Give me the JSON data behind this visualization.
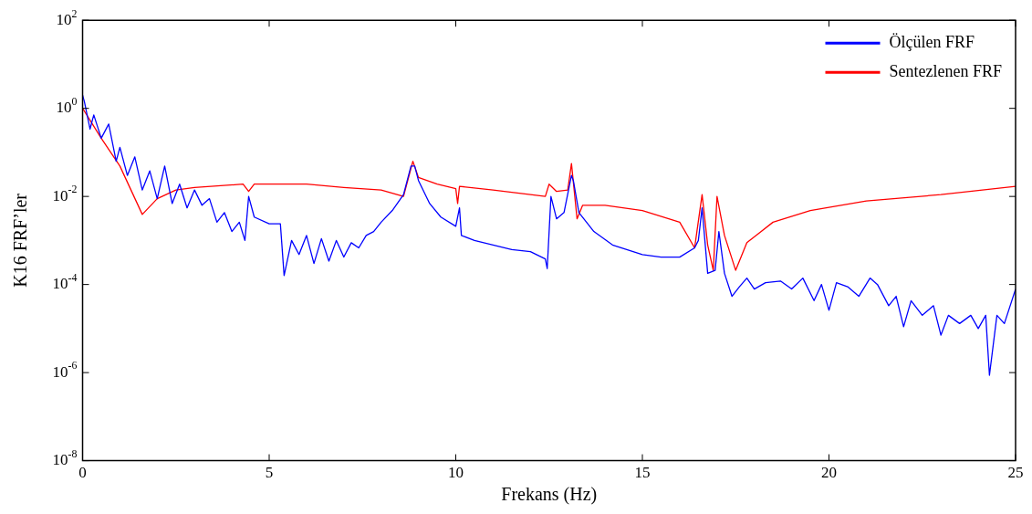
{
  "chart_data": {
    "type": "line",
    "xlabel": "Frekans (Hz)",
    "ylabel": "K16 FRF’ler",
    "log": "y",
    "grid": false,
    "legend": "top right",
    "marker": "none",
    "line_style": "solid",
    "xlim": [
      0,
      25
    ],
    "xticks": [
      0,
      5,
      10,
      15,
      20,
      25
    ],
    "ylim": [
      1e-08,
      100
    ],
    "yticks": [
      {
        "value": 1e-08,
        "label": "10$^{-8}$"
      },
      {
        "value": 1e-06,
        "label": "10$^{-6}$"
      },
      {
        "value": 0.0001,
        "label": "10$^{-4}$"
      },
      {
        "value": 0.01,
        "label": "10$^{-2}$"
      },
      {
        "value": 1,
        "label": "10$^{0}$"
      },
      {
        "value": 100,
        "label": "10$^{2}$"
      }
    ],
    "series": [
      {
        "name": "Ölçülen FRF",
        "color": "#0000ff",
        "x": [
          0,
          0.05,
          0.2,
          0.3,
          0.5,
          0.7,
          0.9,
          1.0,
          1.2,
          1.4,
          1.6,
          1.8,
          2.0,
          2.2,
          2.4,
          2.6,
          2.8,
          3.0,
          3.2,
          3.4,
          3.6,
          3.8,
          4.0,
          4.2,
          4.35,
          4.45,
          4.6,
          5.0,
          5.3,
          5.4,
          5.6,
          5.8,
          6.0,
          6.2,
          6.4,
          6.6,
          6.8,
          7.0,
          7.2,
          7.4,
          7.6,
          7.8,
          8.0,
          8.3,
          8.6,
          8.8,
          8.9,
          9.0,
          9.3,
          9.6,
          10.0,
          10.1,
          10.15,
          10.5,
          11.0,
          11.5,
          12.0,
          12.4,
          12.45,
          12.55,
          12.7,
          12.9,
          13.1,
          13.15,
          13.3,
          13.7,
          14.2,
          15.0,
          15.5,
          16.0,
          16.4,
          16.5,
          16.6,
          16.75,
          16.95,
          17.05,
          17.2,
          17.4,
          17.6,
          17.8,
          18.0,
          18.3,
          18.7,
          19.0,
          19.3,
          19.6,
          19.8,
          20.0,
          20.2,
          20.5,
          20.8,
          21.1,
          21.3,
          21.6,
          21.8,
          22.0,
          22.2,
          22.5,
          22.8,
          23.0,
          23.2,
          23.5,
          23.8,
          24.0,
          24.2,
          24.3,
          24.5,
          24.7,
          25.0
        ],
        "values": [
          2.0,
          1.4,
          0.34,
          0.71,
          0.21,
          0.44,
          0.063,
          0.13,
          0.03,
          0.079,
          0.014,
          0.038,
          0.0089,
          0.049,
          0.0069,
          0.019,
          0.0055,
          0.014,
          0.0063,
          0.0089,
          0.0026,
          0.0043,
          0.0016,
          0.0026,
          0.001,
          0.01,
          0.0034,
          0.0024,
          0.0024,
          0.00016,
          0.001,
          0.00048,
          0.0013,
          0.0003,
          0.0011,
          0.00034,
          0.001,
          0.00042,
          0.00089,
          0.00068,
          0.0013,
          0.0016,
          0.0026,
          0.0048,
          0.011,
          0.049,
          0.049,
          0.023,
          0.0069,
          0.0034,
          0.0021,
          0.0055,
          0.0013,
          0.001,
          0.00079,
          0.00062,
          0.00056,
          0.00038,
          0.00023,
          0.01,
          0.0031,
          0.0043,
          0.03,
          0.023,
          0.0043,
          0.0016,
          0.00079,
          0.00048,
          0.00042,
          0.00042,
          0.00068,
          0.001,
          0.0055,
          0.00018,
          0.00021,
          0.0016,
          0.00018,
          5.4e-05,
          8.9e-05,
          0.00014,
          7.9e-05,
          0.00011,
          0.00012,
          7.9e-05,
          0.00014,
          4.3e-05,
          0.0001,
          2.6e-05,
          0.00011,
          8.9e-05,
          5.4e-05,
          0.00014,
          0.0001,
          3.3e-05,
          5.4e-05,
          1.1e-05,
          4.3e-05,
          2e-05,
          3.3e-05,
          7.1e-06,
          2e-05,
          1.3e-05,
          2e-05,
          1e-05,
          2e-05,
          8.7e-07,
          2e-05,
          1.3e-05,
          7.9e-05
        ]
      },
      {
        "name": "Sentezlenen FRF",
        "color": "#ff0000",
        "x": [
          0,
          0.5,
          1.0,
          1.6,
          2.0,
          2.5,
          3.0,
          4.3,
          4.45,
          4.6,
          6.0,
          7.0,
          8.0,
          8.6,
          8.85,
          9.0,
          9.5,
          10.0,
          10.05,
          10.1,
          11.0,
          12.0,
          12.4,
          12.5,
          12.7,
          13.0,
          13.1,
          13.25,
          13.4,
          14.0,
          15.0,
          16.0,
          16.4,
          16.6,
          16.75,
          16.9,
          17.0,
          17.2,
          17.5,
          17.8,
          18.5,
          19.5,
          21.0,
          23.0,
          25.0
        ],
        "values": [
          1,
          0.21,
          0.049,
          0.0039,
          0.0089,
          0.014,
          0.016,
          0.019,
          0.013,
          0.019,
          0.019,
          0.016,
          0.014,
          0.01,
          0.063,
          0.027,
          0.019,
          0.015,
          0.0069,
          0.017,
          0.014,
          0.011,
          0.01,
          0.019,
          0.013,
          0.014,
          0.056,
          0.0031,
          0.0063,
          0.0063,
          0.0048,
          0.0026,
          0.00068,
          0.011,
          0.00079,
          0.00021,
          0.01,
          0.0013,
          0.00021,
          0.00089,
          0.0026,
          0.0048,
          0.0079,
          0.011,
          0.017
        ]
      }
    ]
  }
}
